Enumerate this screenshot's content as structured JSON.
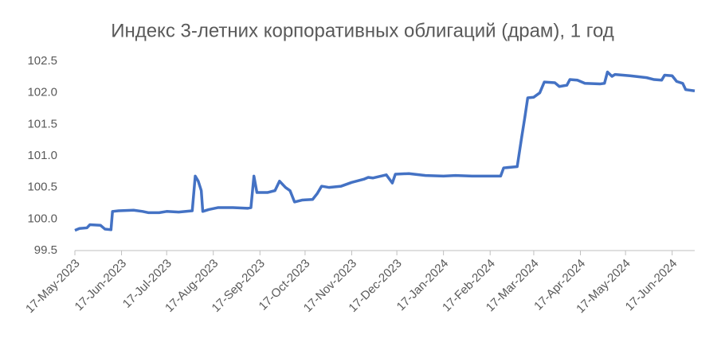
{
  "chart_data": {
    "type": "line",
    "title": "Индекс 3-летних корпоративных облигаций (драм), 1 год",
    "x": [
      "2023-05-17",
      "2023-05-20",
      "2023-05-25",
      "2023-05-27",
      "2023-06-03",
      "2023-06-06",
      "2023-06-10",
      "2023-06-11",
      "2023-06-15",
      "2023-06-25",
      "2023-07-01",
      "2023-07-05",
      "2023-07-12",
      "2023-07-17",
      "2023-07-25",
      "2023-08-03",
      "2023-08-05",
      "2023-08-07",
      "2023-08-09",
      "2023-08-10",
      "2023-08-14",
      "2023-08-20",
      "2023-08-30",
      "2023-09-09",
      "2023-09-11",
      "2023-09-13",
      "2023-09-15",
      "2023-09-22",
      "2023-09-27",
      "2023-09-30",
      "2023-10-04",
      "2023-10-07",
      "2023-10-10",
      "2023-10-15",
      "2023-10-22",
      "2023-10-25",
      "2023-10-28",
      "2023-11-02",
      "2023-11-10",
      "2023-11-17",
      "2023-11-25",
      "2023-11-28",
      "2023-12-01",
      "2023-12-10",
      "2023-12-14",
      "2023-12-16",
      "2023-12-25",
      "2024-01-05",
      "2024-01-17",
      "2024-01-25",
      "2024-02-05",
      "2024-02-17",
      "2024-02-24",
      "2024-02-26",
      "2024-03-06",
      "2024-03-09",
      "2024-03-11",
      "2024-03-13",
      "2024-03-17",
      "2024-03-21",
      "2024-03-24",
      "2024-03-31",
      "2024-04-03",
      "2024-04-08",
      "2024-04-10",
      "2024-04-15",
      "2024-04-20",
      "2024-04-30",
      "2024-05-03",
      "2024-05-05",
      "2024-05-08",
      "2024-05-10",
      "2024-05-20",
      "2024-05-31",
      "2024-06-05",
      "2024-06-10",
      "2024-06-12",
      "2024-06-17",
      "2024-06-20",
      "2024-06-24",
      "2024-06-26",
      "2024-07-02"
    ],
    "series": [
      {
        "color": "#4472c4",
        "values": [
          99.82,
          99.85,
          99.86,
          99.91,
          99.9,
          99.84,
          99.83,
          100.12,
          100.13,
          100.14,
          100.12,
          100.1,
          100.1,
          100.12,
          100.11,
          100.13,
          100.68,
          100.6,
          100.45,
          100.12,
          100.15,
          100.18,
          100.18,
          100.17,
          100.18,
          100.68,
          100.42,
          100.42,
          100.45,
          100.6,
          100.5,
          100.45,
          100.27,
          100.3,
          100.31,
          100.4,
          100.52,
          100.5,
          100.52,
          100.58,
          100.63,
          100.66,
          100.65,
          100.7,
          100.57,
          100.71,
          100.72,
          100.69,
          100.68,
          100.69,
          100.68,
          100.68,
          100.68,
          100.81,
          100.83,
          101.3,
          101.6,
          101.92,
          101.93,
          102.0,
          102.17,
          102.16,
          102.1,
          102.12,
          102.21,
          102.2,
          102.15,
          102.14,
          102.15,
          102.33,
          102.26,
          102.29,
          102.27,
          102.24,
          102.21,
          102.2,
          102.28,
          102.27,
          102.18,
          102.15,
          102.05,
          102.03
        ]
      }
    ],
    "xlim": [
      "2023-05-17",
      "2024-07-02"
    ],
    "xticks": [
      {
        "value": "2023-05-17",
        "label": "17-May-2023"
      },
      {
        "value": "2023-06-17",
        "label": "17-Jun-2023"
      },
      {
        "value": "2023-07-17",
        "label": "17-Jul-2023"
      },
      {
        "value": "2023-08-17",
        "label": "17-Aug-2023"
      },
      {
        "value": "2023-09-17",
        "label": "17-Sep-2023"
      },
      {
        "value": "2023-10-17",
        "label": "17-Oct-2023"
      },
      {
        "value": "2023-11-17",
        "label": "17-Nov-2023"
      },
      {
        "value": "2023-12-17",
        "label": "17-Dec-2023"
      },
      {
        "value": "2024-01-17",
        "label": "17-Jan-2024"
      },
      {
        "value": "2024-02-17",
        "label": "17-Feb-2024"
      },
      {
        "value": "2024-03-17",
        "label": "17-Mar-2024"
      },
      {
        "value": "2024-04-17",
        "label": "17-Apr-2024"
      },
      {
        "value": "2024-05-17",
        "label": "17-May-2024"
      },
      {
        "value": "2024-06-17",
        "label": "17-Jun-2024"
      }
    ],
    "ylim": [
      99.5,
      102.5
    ],
    "yticks": [
      99.5,
      {
        "value": 100,
        "label": "100.0"
      },
      100.5,
      {
        "value": 101,
        "label": "101.0"
      },
      101.5,
      {
        "value": 102,
        "label": "102.0"
      },
      102.5
    ],
    "grid": false
  }
}
